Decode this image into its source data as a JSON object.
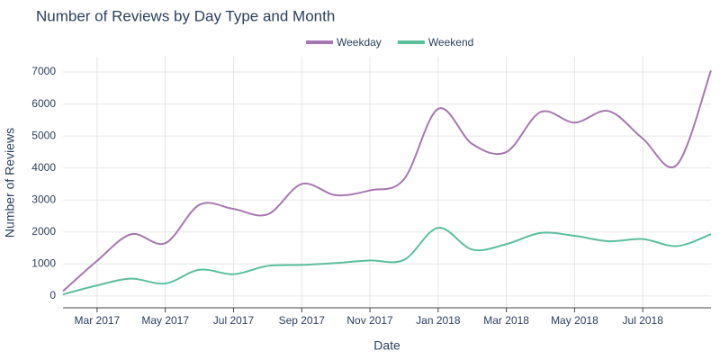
{
  "chart_data": {
    "type": "line",
    "title": "Number of Reviews by Day Type and Month",
    "x_label": "Date",
    "y_label": "Number of Reviews",
    "x": [
      "2017-02",
      "2017-03",
      "2017-04",
      "2017-05",
      "2017-06",
      "2017-07",
      "2017-08",
      "2017-09",
      "2017-10",
      "2017-11",
      "2017-12",
      "2018-01",
      "2018-02",
      "2018-03",
      "2018-04",
      "2018-05",
      "2018-06",
      "2018-07",
      "2018-08",
      "2018-09"
    ],
    "series": [
      {
        "name": "Weekday",
        "color": "#a777b1",
        "values": [
          150,
          1100,
          1930,
          1650,
          2850,
          2720,
          2550,
          3500,
          3150,
          3300,
          3650,
          5850,
          4750,
          4500,
          5750,
          5420,
          5780,
          4920,
          4100,
          7050
        ]
      },
      {
        "name": "Weekend",
        "color": "#5bbf9c",
        "values": [
          50,
          330,
          540,
          390,
          820,
          680,
          940,
          970,
          1030,
          1110,
          1130,
          2130,
          1450,
          1620,
          1970,
          1880,
          1710,
          1780,
          1560,
          1930
        ]
      }
    ],
    "xlim": [
      "2017-02",
      "2018-09"
    ],
    "xticks": [
      {
        "value": "2017-03",
        "label": "Mar 2017"
      },
      {
        "value": "2017-05",
        "label": "May 2017"
      },
      {
        "value": "2017-07",
        "label": "Jul 2017"
      },
      {
        "value": "2017-09",
        "label": "Sep 2017"
      },
      {
        "value": "2017-11",
        "label": "Nov 2017"
      },
      {
        "value": "2018-01",
        "label": "Jan 2018"
      },
      {
        "value": "2018-03",
        "label": "Mar 2018"
      },
      {
        "value": "2018-05",
        "label": "May 2018"
      },
      {
        "value": "2018-07",
        "label": "Jul 2018"
      }
    ],
    "ylim": [
      -370,
      7480
    ],
    "yticks": [
      0,
      1000,
      2000,
      3000,
      4000,
      5000,
      6000,
      7000
    ],
    "grid": true,
    "legend": "top"
  }
}
